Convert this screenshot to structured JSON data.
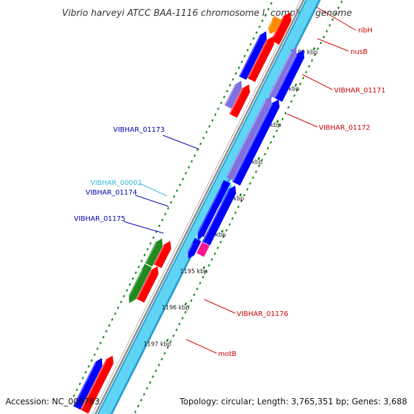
{
  "title": "Vibrio harveyi ATCC BAA-1116 chromosome I, complete genome",
  "footer": {
    "accession": "Accession: NC_009783",
    "topology": "Topology: circular; Length: 3,765,351 bp; Genes: 3,688"
  },
  "colors": {
    "backbone_outer": "#2a9fd0",
    "backbone_inner": "#5fd4f5",
    "gray_line": "#8a8a8a",
    "dots": "#1f8a1f",
    "red": "#ff0000",
    "blue": "#0000ff",
    "purple": "#8070e0",
    "orange": "#ff8c00",
    "green": "#208a20",
    "magenta": "#ff1493",
    "cyan": "#5fd4f5",
    "label_red": "#cc0000",
    "label_blue": "#0000aa",
    "label_cyan": "#33bbdd"
  },
  "kbp_ticks": [
    "1189 kbp",
    "1190 kbp",
    "1191 kbp",
    "1192 kbp",
    "1193 kbp",
    "1194 kbp",
    "1195 kbp",
    "1196 kbp",
    "1197 kbp"
  ],
  "gene_labels": [
    {
      "text": "ribH",
      "color": "label_red"
    },
    {
      "text": "nusB",
      "color": "label_red"
    },
    {
      "text": "VIBHAR_01171",
      "color": "label_red"
    },
    {
      "text": "VIBHAR_01172",
      "color": "label_red"
    },
    {
      "text": "VIBHAR_01173",
      "color": "label_blue"
    },
    {
      "text": "VIBHAR_00002",
      "color": "label_cyan"
    },
    {
      "text": "VIBHAR_01174",
      "color": "label_blue"
    },
    {
      "text": "VIBHAR_01175",
      "color": "label_blue"
    },
    {
      "text": "VIBHAR_01176",
      "color": "label_red"
    },
    {
      "text": "motB",
      "color": "label_red"
    }
  ]
}
